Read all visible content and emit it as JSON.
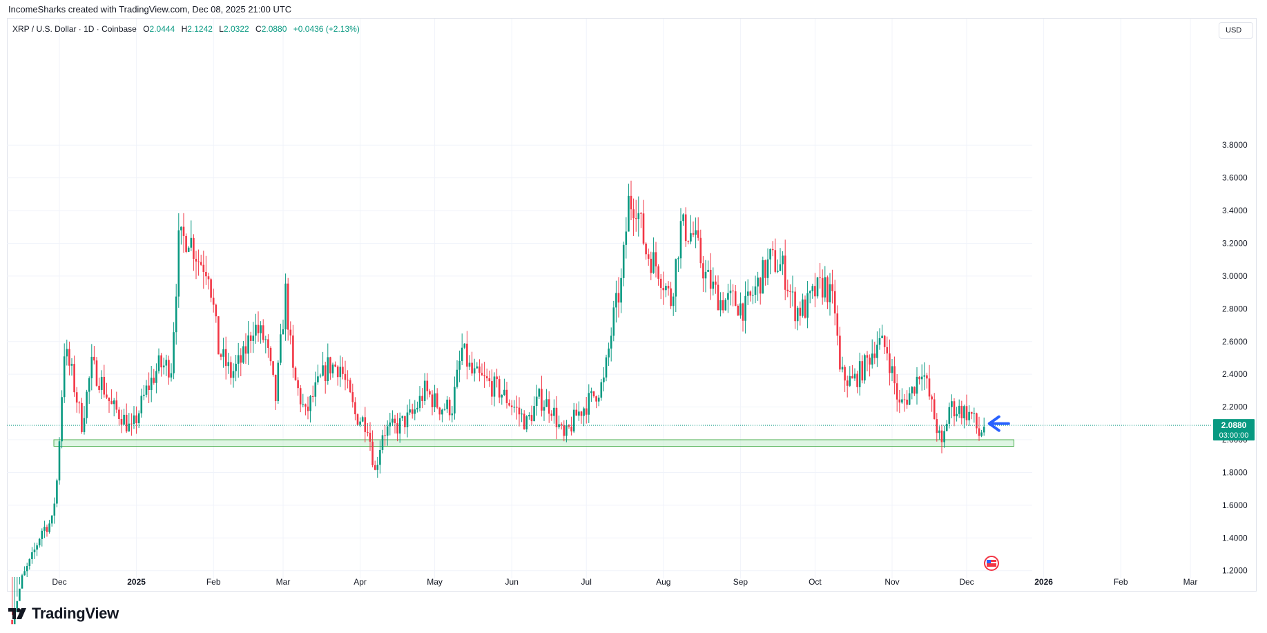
{
  "header": {
    "attribution": "IncomeSharks created with TradingView.com, Dec 08, 2025 21:00 UTC"
  },
  "legend": {
    "symbol": "XRP / U.S. Dollar · 1D · Coinbase",
    "open_key": "O",
    "open": "2.0444",
    "high_key": "H",
    "high": "2.1242",
    "low_key": "L",
    "low": "2.0322",
    "close_key": "C",
    "close": "2.0880",
    "change": "+0.0436 (+2.13%)"
  },
  "currency_button": "USD",
  "price_badge": {
    "price": "2.0880",
    "countdown": "03:00:00"
  },
  "branding": {
    "logo_text": "TradingView"
  },
  "colors": {
    "up": "#089981",
    "down": "#f23645",
    "zone_fill": "#c8efd0",
    "zone_border": "#4caf50",
    "arrow": "#2962ff",
    "grid": "#f0f3fa",
    "price_line": "#089981"
  },
  "icons": {
    "arrow": "left-arrow-icon",
    "event": "us-flag-event-icon",
    "logo": "tradingview-logo-icon"
  },
  "chart_data": {
    "type": "candlestick",
    "y_axis": {
      "ylim": [
        1.19,
        3.89
      ],
      "ticks": [
        "1.2000",
        "1.4000",
        "1.6000",
        "1.8000",
        "2.0000",
        "2.2000",
        "2.4000",
        "2.6000",
        "2.8000",
        "3.0000",
        "3.2000",
        "3.4000",
        "3.6000",
        "3.8000"
      ]
    },
    "x_axis": {
      "labels": [
        "Dec",
        "2025",
        "Feb",
        "Mar",
        "Apr",
        "May",
        "Jun",
        "Jul",
        "Aug",
        "Sep",
        "Oct",
        "Nov",
        "Dec",
        "2026",
        "Feb",
        "Mar"
      ],
      "label_dates": [
        "2024-12-01",
        "2025-01-01",
        "2025-02-01",
        "2025-03-01",
        "2025-04-01",
        "2025-05-01",
        "2025-06-01",
        "2025-07-01",
        "2025-08-01",
        "2025-09-01",
        "2025-10-01",
        "2025-11-01",
        "2025-12-01",
        "2026-01-01",
        "2026-02-01",
        "2026-03-01"
      ]
    },
    "support_zone": {
      "start": "2024-12-01",
      "end": "2025-12-20",
      "low": 1.96,
      "high": 2.0
    },
    "marker": {
      "type": "arrow-left",
      "date": "2025-12-14",
      "price": 2.09
    },
    "current_price": 2.088,
    "anchors": [
      [
        "2024-11-12",
        0.9
      ],
      [
        "2024-11-16",
        1.15
      ],
      [
        "2024-11-20",
        1.28
      ],
      [
        "2024-11-24",
        1.45
      ],
      [
        "2024-11-28",
        1.5
      ],
      [
        "2024-11-30",
        1.75
      ],
      [
        "2024-12-03",
        2.55
      ],
      [
        "2024-12-06",
        2.4
      ],
      [
        "2024-12-10",
        2.1
      ],
      [
        "2024-12-14",
        2.45
      ],
      [
        "2024-12-18",
        2.35
      ],
      [
        "2024-12-22",
        2.2
      ],
      [
        "2024-12-26",
        2.15
      ],
      [
        "2024-12-30",
        2.05
      ],
      [
        "2025-01-05",
        2.3
      ],
      [
        "2025-01-10",
        2.45
      ],
      [
        "2025-01-15",
        2.45
      ],
      [
        "2025-01-18",
        3.2
      ],
      [
        "2025-01-22",
        3.25
      ],
      [
        "2025-01-26",
        3.1
      ],
      [
        "2025-01-30",
        3.05
      ],
      [
        "2025-02-03",
        2.55
      ],
      [
        "2025-02-08",
        2.4
      ],
      [
        "2025-02-13",
        2.5
      ],
      [
        "2025-02-17",
        2.7
      ],
      [
        "2025-02-22",
        2.6
      ],
      [
        "2025-02-26",
        2.25
      ],
      [
        "2025-03-02",
        2.9
      ],
      [
        "2025-03-05",
        2.4
      ],
      [
        "2025-03-10",
        2.15
      ],
      [
        "2025-03-14",
        2.3
      ],
      [
        "2025-03-19",
        2.45
      ],
      [
        "2025-03-24",
        2.45
      ],
      [
        "2025-03-30",
        2.15
      ],
      [
        "2025-04-04",
        2.1
      ],
      [
        "2025-04-07",
        1.8
      ],
      [
        "2025-04-10",
        2.05
      ],
      [
        "2025-04-16",
        2.08
      ],
      [
        "2025-04-22",
        2.15
      ],
      [
        "2025-04-27",
        2.3
      ],
      [
        "2025-05-03",
        2.2
      ],
      [
        "2025-05-08",
        2.2
      ],
      [
        "2025-05-12",
        2.55
      ],
      [
        "2025-05-16",
        2.4
      ],
      [
        "2025-05-22",
        2.35
      ],
      [
        "2025-05-27",
        2.3
      ],
      [
        "2025-06-02",
        2.2
      ],
      [
        "2025-06-07",
        2.1
      ],
      [
        "2025-06-12",
        2.25
      ],
      [
        "2025-06-17",
        2.2
      ],
      [
        "2025-06-22",
        2.0
      ],
      [
        "2025-06-27",
        2.15
      ],
      [
        "2025-07-03",
        2.25
      ],
      [
        "2025-07-08",
        2.35
      ],
      [
        "2025-07-12",
        2.75
      ],
      [
        "2025-07-15",
        2.95
      ],
      [
        "2025-07-18",
        3.45
      ],
      [
        "2025-07-21",
        3.45
      ],
      [
        "2025-07-25",
        3.15
      ],
      [
        "2025-07-30",
        3.05
      ],
      [
        "2025-08-04",
        2.85
      ],
      [
        "2025-08-08",
        3.3
      ],
      [
        "2025-08-13",
        3.25
      ],
      [
        "2025-08-18",
        3.0
      ],
      [
        "2025-08-24",
        2.85
      ],
      [
        "2025-08-29",
        2.85
      ],
      [
        "2025-09-03",
        2.8
      ],
      [
        "2025-09-08",
        2.95
      ],
      [
        "2025-09-13",
        3.1
      ],
      [
        "2025-09-18",
        3.05
      ],
      [
        "2025-09-23",
        2.8
      ],
      [
        "2025-09-27",
        2.8
      ],
      [
        "2025-10-01",
        2.9
      ],
      [
        "2025-10-05",
        2.95
      ],
      [
        "2025-10-09",
        2.8
      ],
      [
        "2025-10-11",
        2.4
      ],
      [
        "2025-10-16",
        2.35
      ],
      [
        "2025-10-21",
        2.45
      ],
      [
        "2025-10-26",
        2.6
      ],
      [
        "2025-10-30",
        2.55
      ],
      [
        "2025-11-04",
        2.2
      ],
      [
        "2025-11-09",
        2.3
      ],
      [
        "2025-11-13",
        2.45
      ],
      [
        "2025-11-17",
        2.2
      ],
      [
        "2025-11-21",
        1.95
      ],
      [
        "2025-11-24",
        2.2
      ],
      [
        "2025-11-29",
        2.18
      ],
      [
        "2025-12-03",
        2.15
      ],
      [
        "2025-12-06",
        2.03
      ],
      [
        "2025-12-08",
        2.088
      ]
    ]
  }
}
